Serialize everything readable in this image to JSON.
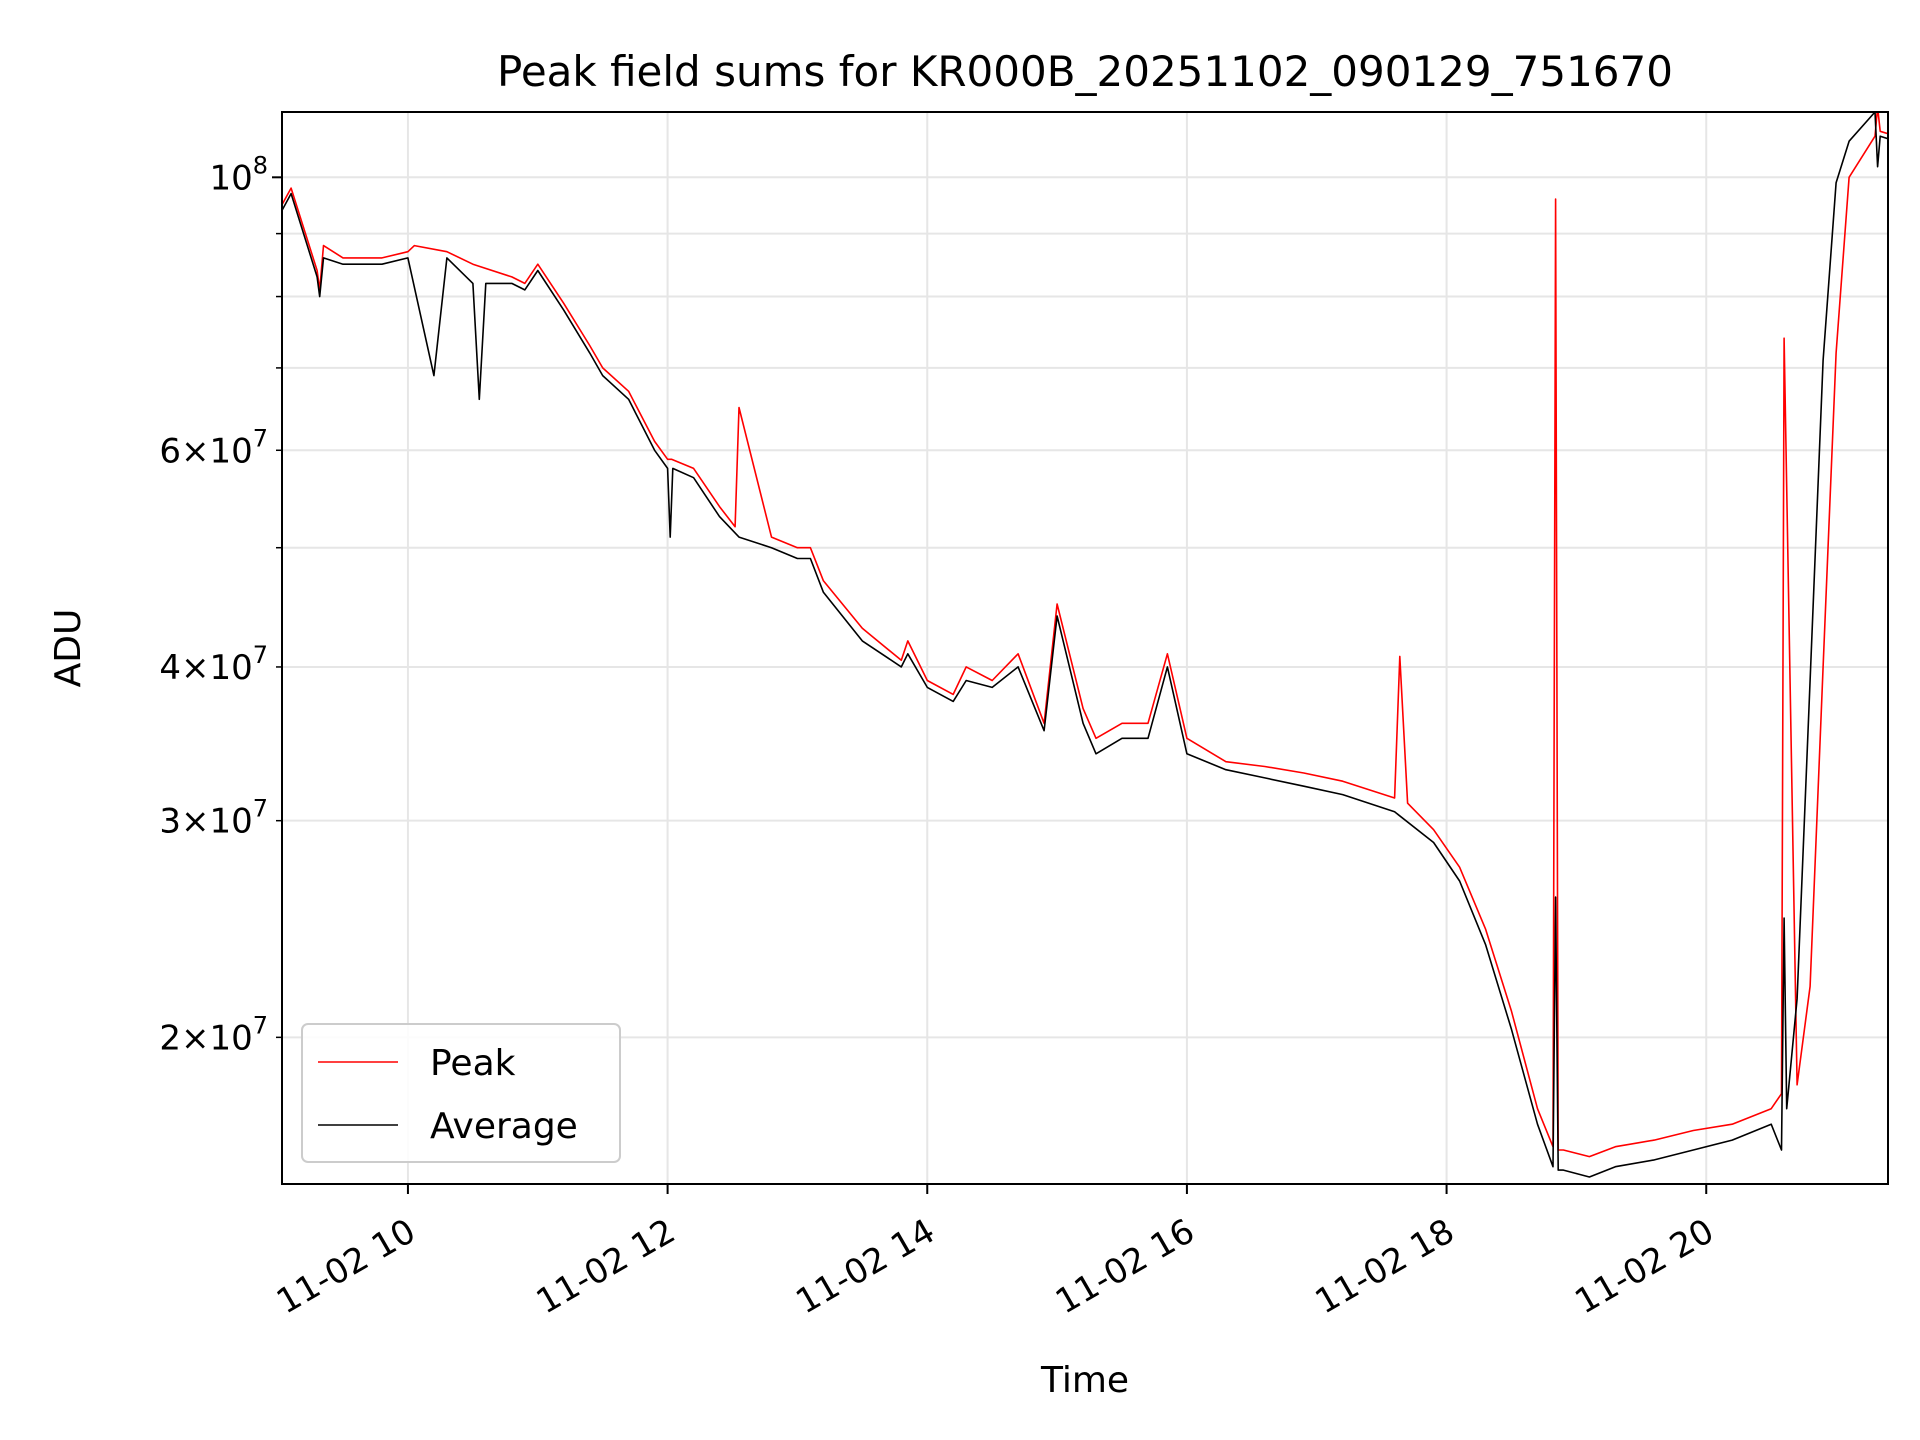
{
  "chart_data": {
    "type": "line",
    "title": "Peak field sums for KR000B_20251102_090129_751670",
    "xlabel": "Time",
    "ylabel": "ADU",
    "yscale": "log",
    "xlim": [
      9.03,
      21.4
    ],
    "ylim": [
      15200000,
      113000000
    ],
    "grid": true,
    "legend_position": "lower-left",
    "x_ticks": [
      {
        "value": 10,
        "label": "11-02 10"
      },
      {
        "value": 12,
        "label": "11-02 12"
      },
      {
        "value": 14,
        "label": "11-02 14"
      },
      {
        "value": 16,
        "label": "11-02 16"
      },
      {
        "value": 18,
        "label": "11-02 18"
      },
      {
        "value": 20,
        "label": "11-02 20"
      }
    ],
    "y_major_ticks": [
      {
        "value": 100000000,
        "base": "10",
        "exp": "8"
      }
    ],
    "y_minor_ticks": [
      {
        "value": 20000000,
        "mant": "2",
        "base": "10",
        "exp": "7"
      },
      {
        "value": 30000000,
        "mant": "3",
        "base": "10",
        "exp": "7"
      },
      {
        "value": 40000000,
        "mant": "4",
        "base": "10",
        "exp": "7"
      },
      {
        "value": 60000000,
        "mant": "6",
        "base": "10",
        "exp": "7"
      }
    ],
    "y_unlabeled_ticks": [
      50000000,
      70000000,
      80000000,
      90000000
    ],
    "series": [
      {
        "name": "Peak",
        "color": "#ff0000",
        "x": [
          9.03,
          9.1,
          9.3,
          9.32,
          9.35,
          9.5,
          9.8,
          10.0,
          10.05,
          10.3,
          10.5,
          10.8,
          10.9,
          11.0,
          11.2,
          11.4,
          11.5,
          11.7,
          11.9,
          12.0,
          12.03,
          12.2,
          12.4,
          12.52,
          12.55,
          12.8,
          13.0,
          13.1,
          13.2,
          13.5,
          13.8,
          13.85,
          14.0,
          14.2,
          14.3,
          14.5,
          14.7,
          14.9,
          15.0,
          15.2,
          15.3,
          15.5,
          15.7,
          15.85,
          16.0,
          16.3,
          16.6,
          16.9,
          17.2,
          17.6,
          17.64,
          17.7,
          17.9,
          18.1,
          18.3,
          18.5,
          18.7,
          18.82,
          18.84,
          18.86,
          18.9,
          19.1,
          19.3,
          19.6,
          19.9,
          20.2,
          20.5,
          20.58,
          20.6,
          20.7,
          20.8,
          20.9,
          21.0,
          21.1,
          21.3,
          21.32,
          21.34,
          21.4
        ],
        "values": [
          95000000,
          98000000,
          84000000,
          81000000,
          88000000,
          86000000,
          86000000,
          87000000,
          88000000,
          87000000,
          85000000,
          83000000,
          82000000,
          85000000,
          79000000,
          73000000,
          70000000,
          67000000,
          61000000,
          59000000,
          59000000,
          58000000,
          54000000,
          52000000,
          65000000,
          51000000,
          50000000,
          50000000,
          47000000,
          43000000,
          40500000,
          42000000,
          39000000,
          38000000,
          40000000,
          39000000,
          41000000,
          36000000,
          45000000,
          37000000,
          35000000,
          36000000,
          36000000,
          41000000,
          35000000,
          33500000,
          33200000,
          32800000,
          32300000,
          31300000,
          40800000,
          31000000,
          29500000,
          27500000,
          24500000,
          21000000,
          17500000,
          16300000,
          96000000,
          16200000,
          16200000,
          16000000,
          16300000,
          16500000,
          16800000,
          17000000,
          17500000,
          18000000,
          74000000,
          18300000,
          22000000,
          40000000,
          72000000,
          100000000,
          108000000,
          114000000,
          109000000,
          108500000
        ]
      },
      {
        "name": "Average",
        "color": "#000000",
        "x": [
          9.03,
          9.1,
          9.3,
          9.32,
          9.35,
          9.5,
          9.8,
          10.0,
          10.2,
          10.3,
          10.5,
          10.55,
          10.6,
          10.8,
          10.9,
          11.0,
          11.2,
          11.4,
          11.5,
          11.7,
          11.9,
          12.0,
          12.02,
          12.04,
          12.2,
          12.4,
          12.55,
          12.8,
          13.0,
          13.1,
          13.2,
          13.5,
          13.8,
          13.85,
          14.0,
          14.2,
          14.3,
          14.5,
          14.7,
          14.9,
          15.0,
          15.2,
          15.3,
          15.5,
          15.7,
          15.85,
          16.0,
          16.3,
          16.6,
          16.9,
          17.2,
          17.6,
          17.9,
          18.1,
          18.3,
          18.5,
          18.7,
          18.82,
          18.84,
          18.86,
          18.9,
          19.1,
          19.3,
          19.6,
          19.9,
          20.2,
          20.5,
          20.58,
          20.6,
          20.62,
          20.7,
          20.8,
          20.9,
          21.0,
          21.1,
          21.3,
          21.32,
          21.34,
          21.4
        ],
        "values": [
          94000000,
          97000000,
          83000000,
          80000000,
          86000000,
          85000000,
          85000000,
          86000000,
          69000000,
          86000000,
          82000000,
          66000000,
          82000000,
          82000000,
          81000000,
          84000000,
          78000000,
          72000000,
          69000000,
          66000000,
          60000000,
          58000000,
          51000000,
          58000000,
          57000000,
          53000000,
          51000000,
          50000000,
          49000000,
          49000000,
          46000000,
          42000000,
          40000000,
          41000000,
          38500000,
          37500000,
          39000000,
          38500000,
          40000000,
          35500000,
          44000000,
          36000000,
          34000000,
          35000000,
          35000000,
          40000000,
          34000000,
          33000000,
          32500000,
          32000000,
          31500000,
          30500000,
          28800000,
          26800000,
          23800000,
          20300000,
          17000000,
          15700000,
          26000000,
          15600000,
          15600000,
          15400000,
          15700000,
          15900000,
          16200000,
          16500000,
          17000000,
          16200000,
          25000000,
          17500000,
          21500000,
          39000000,
          71000000,
          99000000,
          107000000,
          113000000,
          102000000,
          108000000,
          107500000
        ]
      }
    ]
  }
}
